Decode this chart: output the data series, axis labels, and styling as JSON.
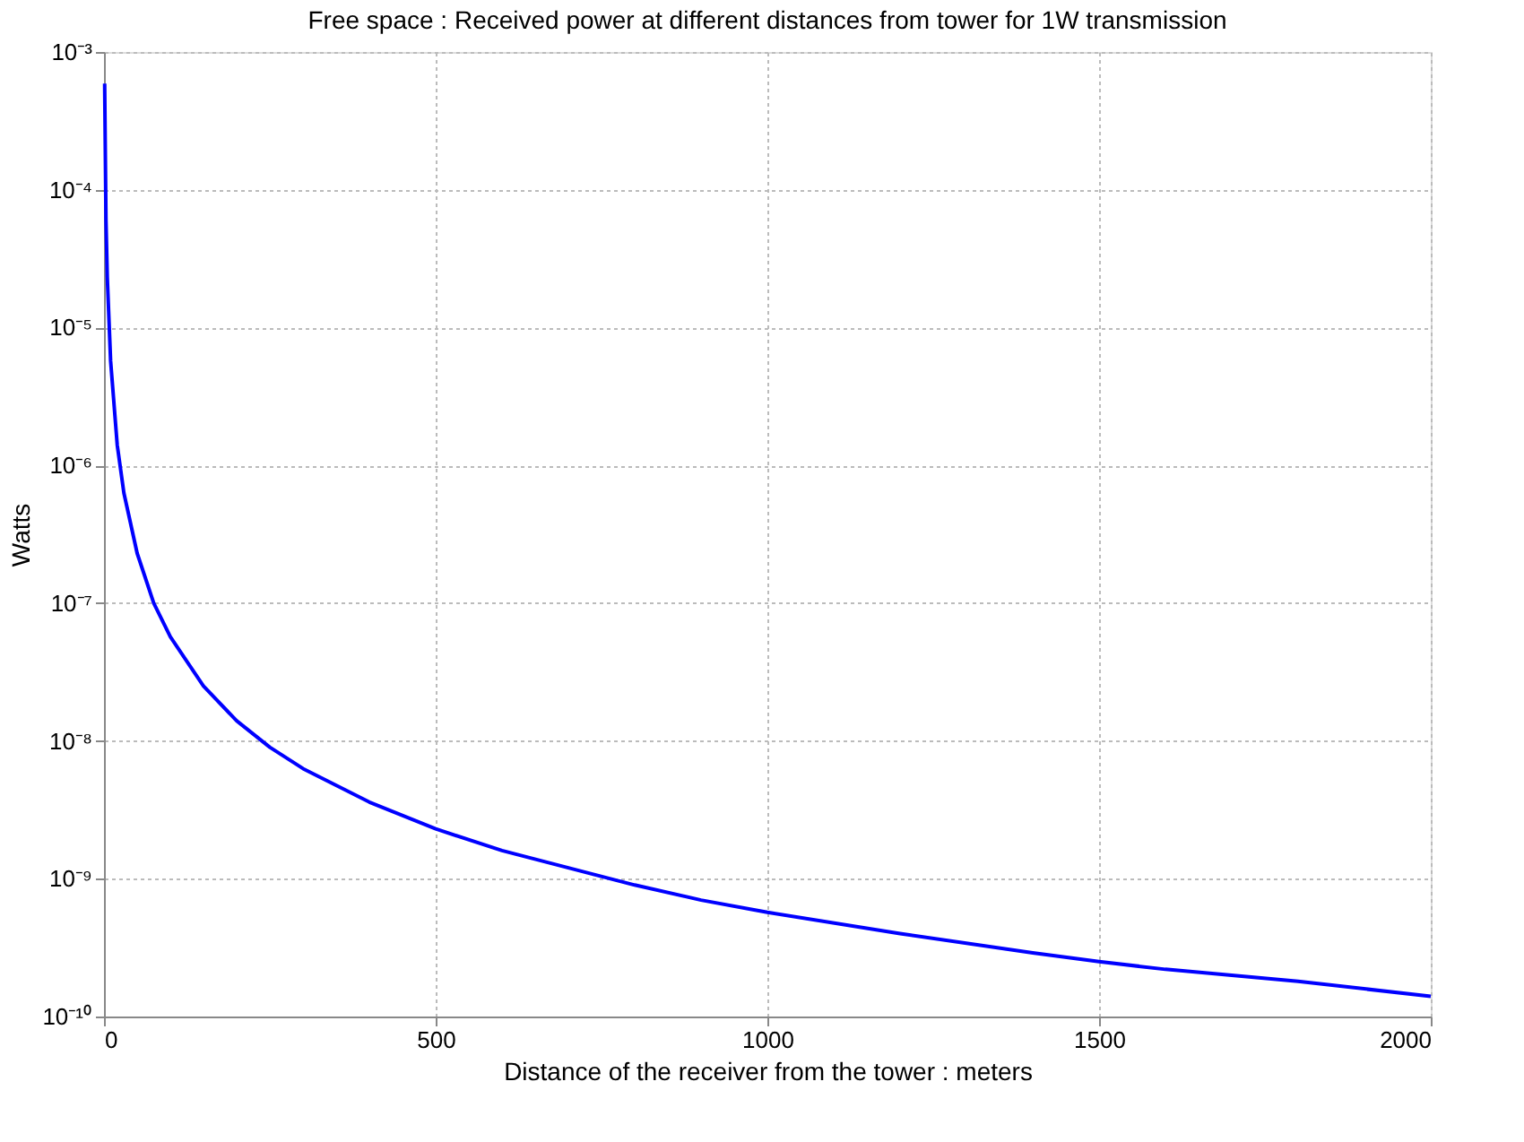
{
  "chart_data": {
    "type": "line",
    "title": "Free space : Received power at different distances from tower for 1W transmission",
    "xlabel": "Distance of the receiver from the tower : meters",
    "ylabel": "Watts",
    "x": [
      1,
      3,
      5,
      10,
      20,
      30,
      50,
      75,
      100,
      150,
      200,
      250,
      300,
      400,
      500,
      600,
      700,
      800,
      900,
      1000,
      1200,
      1400,
      1500,
      1600,
      1800,
      2000
    ],
    "series": [
      {
        "color": "#0000ff",
        "values": [
          0.00059,
          6e-05,
          2.3e-05,
          5.7e-06,
          1.4e-06,
          6.3e-07,
          2.3e-07,
          1e-07,
          5.7e-08,
          2.5e-08,
          1.4e-08,
          9e-09,
          6.3e-09,
          3.6e-09,
          2.3e-09,
          1.6e-09,
          1.2e-09,
          9e-10,
          7e-10,
          5.7e-10,
          4e-10,
          2.9e-10,
          2.5e-10,
          2.2e-10,
          1.8e-10,
          1.4e-10
        ]
      }
    ],
    "log": "y",
    "xlim": [
      0,
      2000
    ],
    "xticks": [
      0,
      500,
      1000,
      1500,
      2000
    ],
    "ylim": [
      1e-10,
      0.001
    ],
    "yticks": [
      {
        "value": 1e-10,
        "label": "10⁻¹⁰"
      },
      {
        "value": 1e-09,
        "label": "10⁻⁹"
      },
      {
        "value": 1e-08,
        "label": "10⁻⁸"
      },
      {
        "value": 1e-07,
        "label": "10⁻⁷"
      },
      {
        "value": 1e-06,
        "label": "10⁻⁶"
      },
      {
        "value": 1e-05,
        "label": "10⁻⁵"
      },
      {
        "value": 0.0001,
        "label": "10⁻⁴"
      },
      {
        "value": 0.001,
        "label": "10⁻³"
      }
    ],
    "grid": true,
    "legend": false,
    "marker": "none",
    "line_style": "solid"
  }
}
